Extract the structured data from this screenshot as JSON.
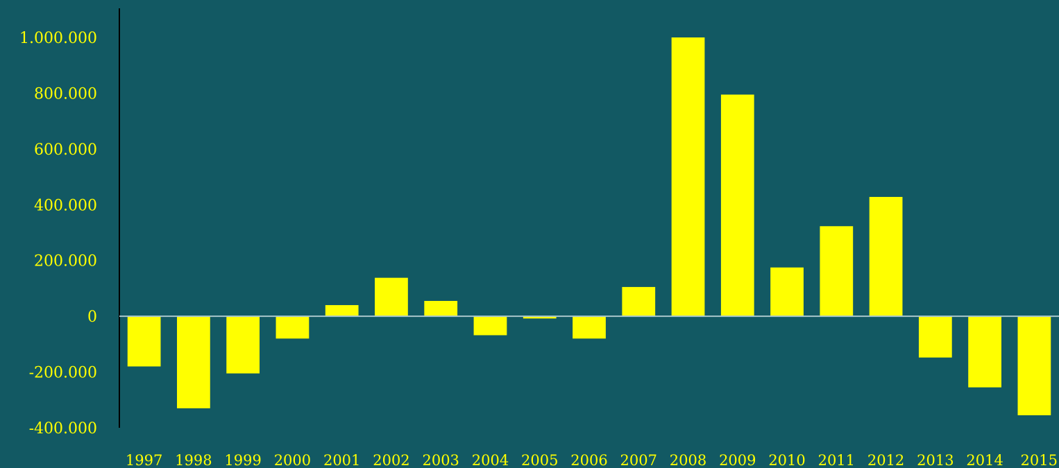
{
  "chart_data": {
    "type": "bar",
    "title": "",
    "xlabel": "",
    "ylabel": "",
    "categories": [
      "1997",
      "1998",
      "1999",
      "2000",
      "2001",
      "2002",
      "2003",
      "2004",
      "2005",
      "2006",
      "2007",
      "2008",
      "2009",
      "2010",
      "2011",
      "2012",
      "2013",
      "2014",
      "2015"
    ],
    "values": [
      -180000,
      -330000,
      -205000,
      -80000,
      40000,
      138000,
      55000,
      -68000,
      -8000,
      -80000,
      105000,
      1000000,
      795000,
      175000,
      323000,
      428000,
      -148000,
      -255000,
      -355000
    ],
    "ylim": [
      -400000,
      1000000
    ],
    "yticks": [
      {
        "value": -400000,
        "label": "-400.000"
      },
      {
        "value": -200000,
        "label": "-200.000"
      },
      {
        "value": 0,
        "label": "0"
      },
      {
        "value": 200000,
        "label": "200.000"
      },
      {
        "value": 400000,
        "label": "400.000"
      },
      {
        "value": 600000,
        "label": "600.000"
      },
      {
        "value": 800000,
        "label": "800.000"
      },
      {
        "value": 1000000,
        "label": "1.000.000"
      }
    ],
    "grid": false,
    "legend": "none",
    "colors": {
      "background": "#125963",
      "bar": "#ffff00",
      "text": "#ffff00",
      "axis": "#000000",
      "zero_line": "#a9c7cb"
    }
  }
}
